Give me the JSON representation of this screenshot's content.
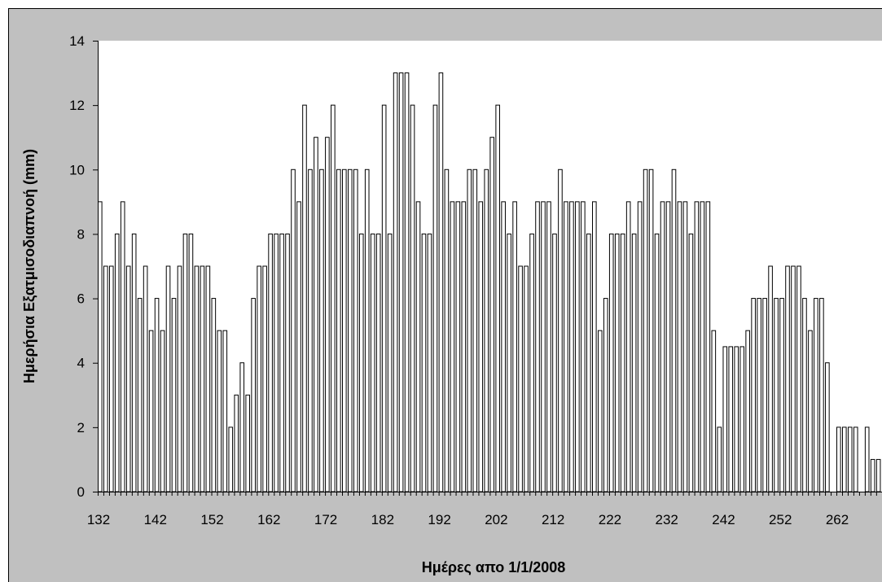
{
  "colors": {
    "chart_background": "#C0C0C0",
    "plot_background": "#FFFFFF",
    "bar_fill": "#FFFFFF",
    "bar_stroke": "#000000",
    "axis": "#000000"
  },
  "chart_data": {
    "type": "bar",
    "xlabel": "Ημέρες απο 1/1/2008",
    "ylabel": "Ημερήσια Εξατμισοδιαπνοή (mm)",
    "ylim": [
      0,
      14
    ],
    "y_ticks": [
      0,
      2,
      4,
      6,
      8,
      10,
      12,
      14
    ],
    "y_tick_labels": [
      "0",
      "2",
      "4",
      "6",
      "8",
      "10",
      "12",
      "14"
    ],
    "x_tick_labels": [
      "132",
      "142",
      "152",
      "162",
      "172",
      "182",
      "192",
      "202",
      "212",
      "222",
      "232",
      "242",
      "252",
      "262"
    ],
    "grid": false,
    "legend": "none",
    "x": [
      132,
      133,
      134,
      135,
      136,
      137,
      138,
      139,
      140,
      141,
      142,
      143,
      144,
      145,
      146,
      147,
      148,
      149,
      150,
      151,
      152,
      153,
      154,
      155,
      156,
      157,
      158,
      159,
      160,
      161,
      162,
      163,
      164,
      165,
      166,
      167,
      168,
      169,
      170,
      171,
      172,
      173,
      174,
      175,
      176,
      177,
      178,
      179,
      180,
      181,
      182,
      183,
      184,
      185,
      186,
      187,
      188,
      189,
      190,
      191,
      192,
      193,
      194,
      195,
      196,
      197,
      198,
      199,
      200,
      201,
      202,
      203,
      204,
      205,
      206,
      207,
      208,
      209,
      210,
      211,
      212,
      213,
      214,
      215,
      216,
      217,
      218,
      219,
      220,
      221,
      222,
      223,
      224,
      225,
      226,
      227,
      228,
      229,
      230,
      231,
      232,
      233,
      234,
      235,
      236,
      237,
      238,
      239,
      240,
      241,
      242,
      243,
      244,
      245,
      246,
      247,
      248,
      249,
      250,
      251,
      252,
      253,
      254,
      255,
      256,
      257,
      258,
      259,
      260,
      261,
      262,
      263,
      264,
      265,
      266,
      267,
      268,
      269
    ],
    "values": [
      9,
      7,
      7,
      8,
      9,
      7,
      8,
      6,
      7,
      5,
      6,
      5,
      7,
      6,
      7,
      8,
      8,
      7,
      7,
      7,
      6,
      5,
      5,
      2,
      3,
      4,
      3,
      6,
      7,
      7,
      8,
      8,
      8,
      8,
      10,
      9,
      12,
      10,
      11,
      10,
      11,
      12,
      10,
      10,
      10,
      10,
      8,
      10,
      8,
      8,
      12,
      8,
      13,
      13,
      13,
      12,
      9,
      8,
      8,
      12,
      13,
      10,
      9,
      9,
      9,
      10,
      10,
      9,
      10,
      11,
      12,
      9,
      8,
      9,
      7,
      7,
      8,
      9,
      9,
      9,
      8,
      10,
      9,
      9,
      9,
      9,
      8,
      9,
      5,
      6,
      8,
      8,
      8,
      9,
      8,
      9,
      10,
      10,
      8,
      9,
      9,
      10,
      9,
      9,
      8,
      9,
      9,
      9,
      5,
      2,
      4.5,
      4.5,
      4.5,
      4.5,
      5,
      6,
      6,
      6,
      7,
      6,
      6,
      7,
      7,
      7,
      6,
      5,
      6,
      6,
      4,
      0,
      2,
      2,
      2,
      2,
      0,
      2,
      1,
      1
    ]
  }
}
